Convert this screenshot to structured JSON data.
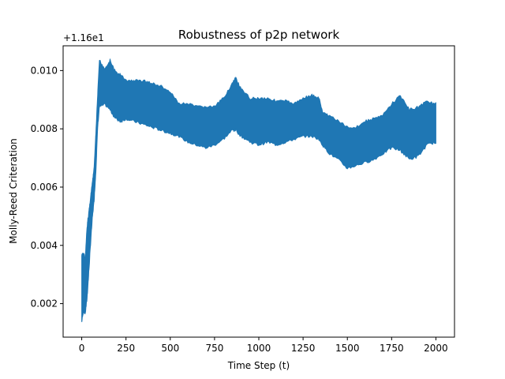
{
  "chart_data": {
    "type": "line",
    "title": "Robustness of p2p network",
    "xlabel": "Time Step (t)",
    "ylabel": "Molly-Reed Criteration",
    "y_offset_label": "+1.16e1",
    "y_offset": 11.6,
    "xlim": [
      -105,
      2105
    ],
    "ylim": [
      0.00085,
      0.01085
    ],
    "x_ticks": [
      0,
      250,
      500,
      750,
      1000,
      1250,
      1500,
      1750,
      2000
    ],
    "y_ticks": [
      0.002,
      0.004,
      0.006,
      0.008,
      0.01
    ],
    "y_tick_labels": [
      "0.002",
      "0.004",
      "0.006",
      "0.008",
      "0.010"
    ],
    "grid": false,
    "series": [
      {
        "color": "#1f77b4",
        "band": {
          "x": [
            0,
            10,
            20,
            30,
            40,
            50,
            60,
            70,
            80,
            90,
            100,
            130,
            160,
            190,
            220,
            250,
            300,
            350,
            400,
            450,
            500,
            550,
            600,
            650,
            700,
            750,
            800,
            850,
            870,
            900,
            950,
            1000,
            1050,
            1100,
            1150,
            1200,
            1250,
            1300,
            1340,
            1360,
            1400,
            1450,
            1500,
            1550,
            1600,
            1650,
            1700,
            1750,
            1800,
            1850,
            1900,
            1950,
            2000
          ],
          "upper": [
            0.0037,
            0.0038,
            0.0036,
            0.0047,
            0.0052,
            0.0057,
            0.0062,
            0.0067,
            0.0079,
            0.0092,
            0.0104,
            0.0101,
            0.0104,
            0.01,
            0.0099,
            0.0097,
            0.0097,
            0.0097,
            0.0096,
            0.0095,
            0.0093,
            0.0089,
            0.0089,
            0.0088,
            0.0088,
            0.0088,
            0.0091,
            0.0096,
            0.0098,
            0.0094,
            0.0091,
            0.0091,
            0.0091,
            0.009,
            0.009,
            0.0089,
            0.0091,
            0.0092,
            0.0091,
            0.0086,
            0.0085,
            0.0083,
            0.0081,
            0.0081,
            0.0083,
            0.0084,
            0.0085,
            0.0089,
            0.0092,
            0.0087,
            0.0088,
            0.009,
            0.0089
          ],
          "lower": [
            0.0013,
            0.0017,
            0.0016,
            0.0021,
            0.003,
            0.004,
            0.0049,
            0.0055,
            0.0065,
            0.008,
            0.0087,
            0.0088,
            0.0086,
            0.0083,
            0.0082,
            0.0083,
            0.0082,
            0.0081,
            0.008,
            0.0079,
            0.0078,
            0.0077,
            0.0075,
            0.0074,
            0.0073,
            0.0074,
            0.0076,
            0.0079,
            0.0079,
            0.0077,
            0.0075,
            0.0074,
            0.0075,
            0.0074,
            0.0075,
            0.0076,
            0.0077,
            0.0077,
            0.0076,
            0.0074,
            0.0071,
            0.0069,
            0.0066,
            0.0067,
            0.0068,
            0.0069,
            0.0071,
            0.0073,
            0.0072,
            0.0069,
            0.007,
            0.0074,
            0.0075
          ]
        }
      }
    ]
  }
}
